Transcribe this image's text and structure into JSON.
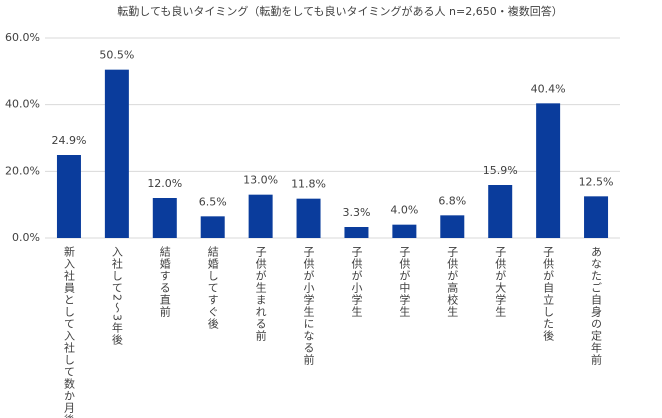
{
  "chart_data": {
    "type": "bar",
    "title": "転勤しても良いタイミング（転勤をしても良いタイミングがある人 n=2,650・複数回答）",
    "categories": [
      "新入社員として入社して数か月後",
      "入社して2～3年後",
      "結婚する直前",
      "結婚してすぐ後",
      "子供が生まれる前",
      "子供が小学生になる前",
      "子供が小学生",
      "子供が中学生",
      "子供が高校生",
      "子供が大学生",
      "子供が自立した後",
      "あなたご自身の定年前"
    ],
    "values": [
      24.9,
      50.5,
      12.0,
      6.5,
      13.0,
      11.8,
      3.3,
      4.0,
      6.8,
      15.9,
      40.4,
      12.5
    ],
    "value_labels": [
      "24.9%",
      "50.5%",
      "12.0%",
      "6.5%",
      "13.0%",
      "11.8%",
      "3.3%",
      "4.0%",
      "6.8%",
      "15.9%",
      "40.4%",
      "12.5%"
    ],
    "color": "#0a3c9c",
    "ylim": [
      0,
      60
    ],
    "yticks": [
      {
        "value": 0,
        "label": "0.0%"
      },
      {
        "value": 20,
        "label": "20.0%"
      },
      {
        "value": 40,
        "label": "40.0%"
      },
      {
        "value": 60,
        "label": "60.0%"
      }
    ],
    "grid": true
  }
}
